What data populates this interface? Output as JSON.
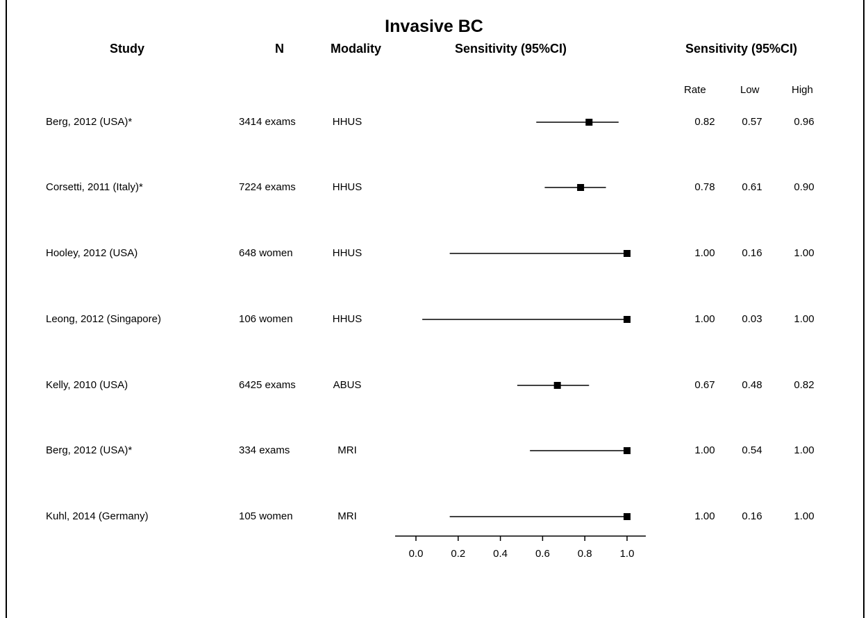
{
  "chart_data": {
    "type": "forest",
    "title": "Invasive BC",
    "headers": {
      "study": "Study",
      "n": "N",
      "modality": "Modality",
      "plot": "Sensitivity (95%CI)",
      "table": "Sensitivity (95%CI)"
    },
    "subheaders": {
      "rate": "Rate",
      "low": "Low",
      "high": "High"
    },
    "xlim": [
      0.0,
      1.0
    ],
    "x_ticks": [
      "0.0",
      "0.2",
      "0.4",
      "0.6",
      "0.8",
      "1.0"
    ],
    "rows": [
      {
        "study": "Berg, 2012 (USA)*",
        "n": "3414 exams",
        "modality": "HHUS",
        "rate": 0.82,
        "low": 0.57,
        "high": 0.96,
        "rate_text": "0.82",
        "low_text": "0.57",
        "high_text": "0.96"
      },
      {
        "study": "Corsetti, 2011 (Italy)*",
        "n": "7224 exams",
        "modality": "HHUS",
        "rate": 0.78,
        "low": 0.61,
        "high": 0.9,
        "rate_text": "0.78",
        "low_text": "0.61",
        "high_text": "0.90"
      },
      {
        "study": "Hooley, 2012 (USA)",
        "n": "648 women",
        "modality": "HHUS",
        "rate": 1.0,
        "low": 0.16,
        "high": 1.0,
        "rate_text": "1.00",
        "low_text": "0.16",
        "high_text": "1.00"
      },
      {
        "study": "Leong, 2012 (Singapore)",
        "n": "106 women",
        "modality": "HHUS",
        "rate": 1.0,
        "low": 0.03,
        "high": 1.0,
        "rate_text": "1.00",
        "low_text": "0.03",
        "high_text": "1.00"
      },
      {
        "study": "Kelly, 2010 (USA)",
        "n": "6425 exams",
        "modality": "ABUS",
        "rate": 0.67,
        "low": 0.48,
        "high": 0.82,
        "rate_text": "0.67",
        "low_text": "0.48",
        "high_text": "0.82"
      },
      {
        "study": "Berg, 2012 (USA)*",
        "n": "334 exams",
        "modality": "MRI",
        "rate": 1.0,
        "low": 0.54,
        "high": 1.0,
        "rate_text": "1.00",
        "low_text": "0.54",
        "high_text": "1.00"
      },
      {
        "study": "Kuhl, 2014 (Germany)",
        "n": "105 women",
        "modality": "MRI",
        "rate": 1.0,
        "low": 0.16,
        "high": 1.0,
        "rate_text": "1.00",
        "low_text": "0.16",
        "high_text": "1.00"
      }
    ]
  }
}
